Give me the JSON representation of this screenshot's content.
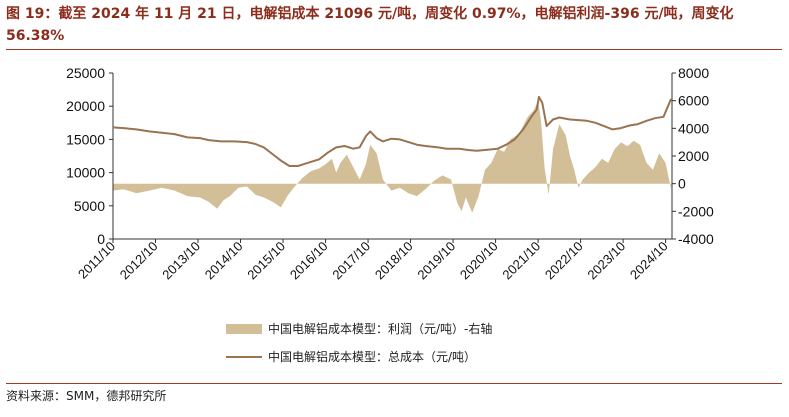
{
  "title": "图 19：截至 2024 年 11 月 21 日，电解铝成本 21096 元/吨，周变化 0.97%，电解铝利润-396 元/吨，周变化 56.38%",
  "source": "资料来源：SMM，德邦研究所",
  "colors": {
    "title": "#8B2D1C",
    "rule": "#A13A25",
    "profit_fill": "#D2BF98",
    "cost_line": "#9A7350",
    "axis": "#333333"
  },
  "chart_data": {
    "type": "area",
    "x_ticks": [
      "2011/10",
      "2012/10",
      "2013/10",
      "2014/10",
      "2015/10",
      "2016/10",
      "2017/10",
      "2018/10",
      "2019/10",
      "2020/10",
      "2021/10",
      "2022/10",
      "2023/10",
      "2024/10"
    ],
    "x_range": [
      2011.75,
      2024.9
    ],
    "y_left": {
      "range": [
        0,
        25000
      ],
      "ticks": [
        0,
        5000,
        10000,
        15000,
        20000,
        25000
      ]
    },
    "y_right": {
      "range": [
        -4000,
        8000
      ],
      "ticks": [
        -4000,
        -2000,
        0,
        2000,
        4000,
        6000,
        8000
      ]
    },
    "legend_position": "bottom",
    "series": [
      {
        "name": "中国电解铝成本模型：利润（元/吨）-右轴",
        "type": "area",
        "axis": "right",
        "points": [
          [
            2011.75,
            -500
          ],
          [
            2012.0,
            -400
          ],
          [
            2012.3,
            -700
          ],
          [
            2012.6,
            -500
          ],
          [
            2012.9,
            -300
          ],
          [
            2013.2,
            -500
          ],
          [
            2013.5,
            -900
          ],
          [
            2013.8,
            -1000
          ],
          [
            2014.0,
            -1300
          ],
          [
            2014.2,
            -1800
          ],
          [
            2014.35,
            -1200
          ],
          [
            2014.5,
            -900
          ],
          [
            2014.7,
            -300
          ],
          [
            2014.9,
            -200
          ],
          [
            2015.1,
            -800
          ],
          [
            2015.3,
            -1000
          ],
          [
            2015.5,
            -1300
          ],
          [
            2015.7,
            -1700
          ],
          [
            2015.85,
            -900
          ],
          [
            2016.0,
            -300
          ],
          [
            2016.2,
            400
          ],
          [
            2016.4,
            900
          ],
          [
            2016.6,
            1100
          ],
          [
            2016.75,
            1400
          ],
          [
            2016.9,
            1800
          ],
          [
            2017.0,
            800
          ],
          [
            2017.1,
            1500
          ],
          [
            2017.25,
            2100
          ],
          [
            2017.4,
            1200
          ],
          [
            2017.55,
            300
          ],
          [
            2017.7,
            1400
          ],
          [
            2017.8,
            2800
          ],
          [
            2017.95,
            2200
          ],
          [
            2018.1,
            300
          ],
          [
            2018.3,
            -500
          ],
          [
            2018.5,
            -300
          ],
          [
            2018.7,
            -700
          ],
          [
            2018.9,
            -900
          ],
          [
            2019.1,
            -400
          ],
          [
            2019.3,
            200
          ],
          [
            2019.5,
            600
          ],
          [
            2019.7,
            300
          ],
          [
            2019.85,
            -1400
          ],
          [
            2019.95,
            -2000
          ],
          [
            2020.05,
            -1000
          ],
          [
            2020.2,
            -2100
          ],
          [
            2020.35,
            -900
          ],
          [
            2020.5,
            1000
          ],
          [
            2020.65,
            1500
          ],
          [
            2020.8,
            2500
          ],
          [
            2020.95,
            2300
          ],
          [
            2021.1,
            3200
          ],
          [
            2021.3,
            3600
          ],
          [
            2021.5,
            4800
          ],
          [
            2021.65,
            5300
          ],
          [
            2021.75,
            6000
          ],
          [
            2021.82,
            4500
          ],
          [
            2021.9,
            1200
          ],
          [
            2022.0,
            -800
          ],
          [
            2022.1,
            2500
          ],
          [
            2022.25,
            4300
          ],
          [
            2022.4,
            3500
          ],
          [
            2022.5,
            2000
          ],
          [
            2022.6,
            1000
          ],
          [
            2022.7,
            -300
          ],
          [
            2022.8,
            300
          ],
          [
            2022.95,
            800
          ],
          [
            2023.1,
            1200
          ],
          [
            2023.25,
            1800
          ],
          [
            2023.4,
            1500
          ],
          [
            2023.55,
            2500
          ],
          [
            2023.7,
            3000
          ],
          [
            2023.85,
            2700
          ],
          [
            2024.0,
            3100
          ],
          [
            2024.15,
            2800
          ],
          [
            2024.3,
            1500
          ],
          [
            2024.45,
            1000
          ],
          [
            2024.6,
            2200
          ],
          [
            2024.75,
            1500
          ],
          [
            2024.88,
            -396
          ]
        ]
      },
      {
        "name": "中国电解铝成本模型：总成本（元/吨）",
        "type": "line",
        "axis": "left",
        "points": [
          [
            2011.75,
            16800
          ],
          [
            2012.0,
            16700
          ],
          [
            2012.3,
            16500
          ],
          [
            2012.6,
            16200
          ],
          [
            2012.9,
            16000
          ],
          [
            2013.2,
            15800
          ],
          [
            2013.5,
            15300
          ],
          [
            2013.8,
            15200
          ],
          [
            2014.0,
            14900
          ],
          [
            2014.3,
            14700
          ],
          [
            2014.6,
            14700
          ],
          [
            2014.9,
            14600
          ],
          [
            2015.1,
            14300
          ],
          [
            2015.3,
            13800
          ],
          [
            2015.5,
            12800
          ],
          [
            2015.7,
            11800
          ],
          [
            2015.9,
            11000
          ],
          [
            2016.1,
            11000
          ],
          [
            2016.3,
            11400
          ],
          [
            2016.6,
            12000
          ],
          [
            2016.8,
            13000
          ],
          [
            2017.0,
            13800
          ],
          [
            2017.2,
            14000
          ],
          [
            2017.4,
            13600
          ],
          [
            2017.55,
            13800
          ],
          [
            2017.7,
            15500
          ],
          [
            2017.8,
            16200
          ],
          [
            2017.95,
            15200
          ],
          [
            2018.1,
            14700
          ],
          [
            2018.3,
            15100
          ],
          [
            2018.5,
            15000
          ],
          [
            2018.7,
            14600
          ],
          [
            2018.9,
            14200
          ],
          [
            2019.1,
            14000
          ],
          [
            2019.4,
            13800
          ],
          [
            2019.6,
            13600
          ],
          [
            2019.9,
            13600
          ],
          [
            2020.1,
            13400
          ],
          [
            2020.3,
            13300
          ],
          [
            2020.5,
            13400
          ],
          [
            2020.8,
            13600
          ],
          [
            2021.0,
            14200
          ],
          [
            2021.2,
            15000
          ],
          [
            2021.4,
            16500
          ],
          [
            2021.6,
            18500
          ],
          [
            2021.72,
            19500
          ],
          [
            2021.77,
            21400
          ],
          [
            2021.85,
            20500
          ],
          [
            2021.95,
            17000
          ],
          [
            2022.1,
            18000
          ],
          [
            2022.25,
            18300
          ],
          [
            2022.5,
            18000
          ],
          [
            2022.7,
            17900
          ],
          [
            2022.9,
            17800
          ],
          [
            2023.1,
            17500
          ],
          [
            2023.3,
            17000
          ],
          [
            2023.5,
            16500
          ],
          [
            2023.7,
            16700
          ],
          [
            2023.9,
            17100
          ],
          [
            2024.1,
            17300
          ],
          [
            2024.3,
            17800
          ],
          [
            2024.5,
            18200
          ],
          [
            2024.7,
            18400
          ],
          [
            2024.88,
            21096
          ]
        ]
      }
    ]
  }
}
